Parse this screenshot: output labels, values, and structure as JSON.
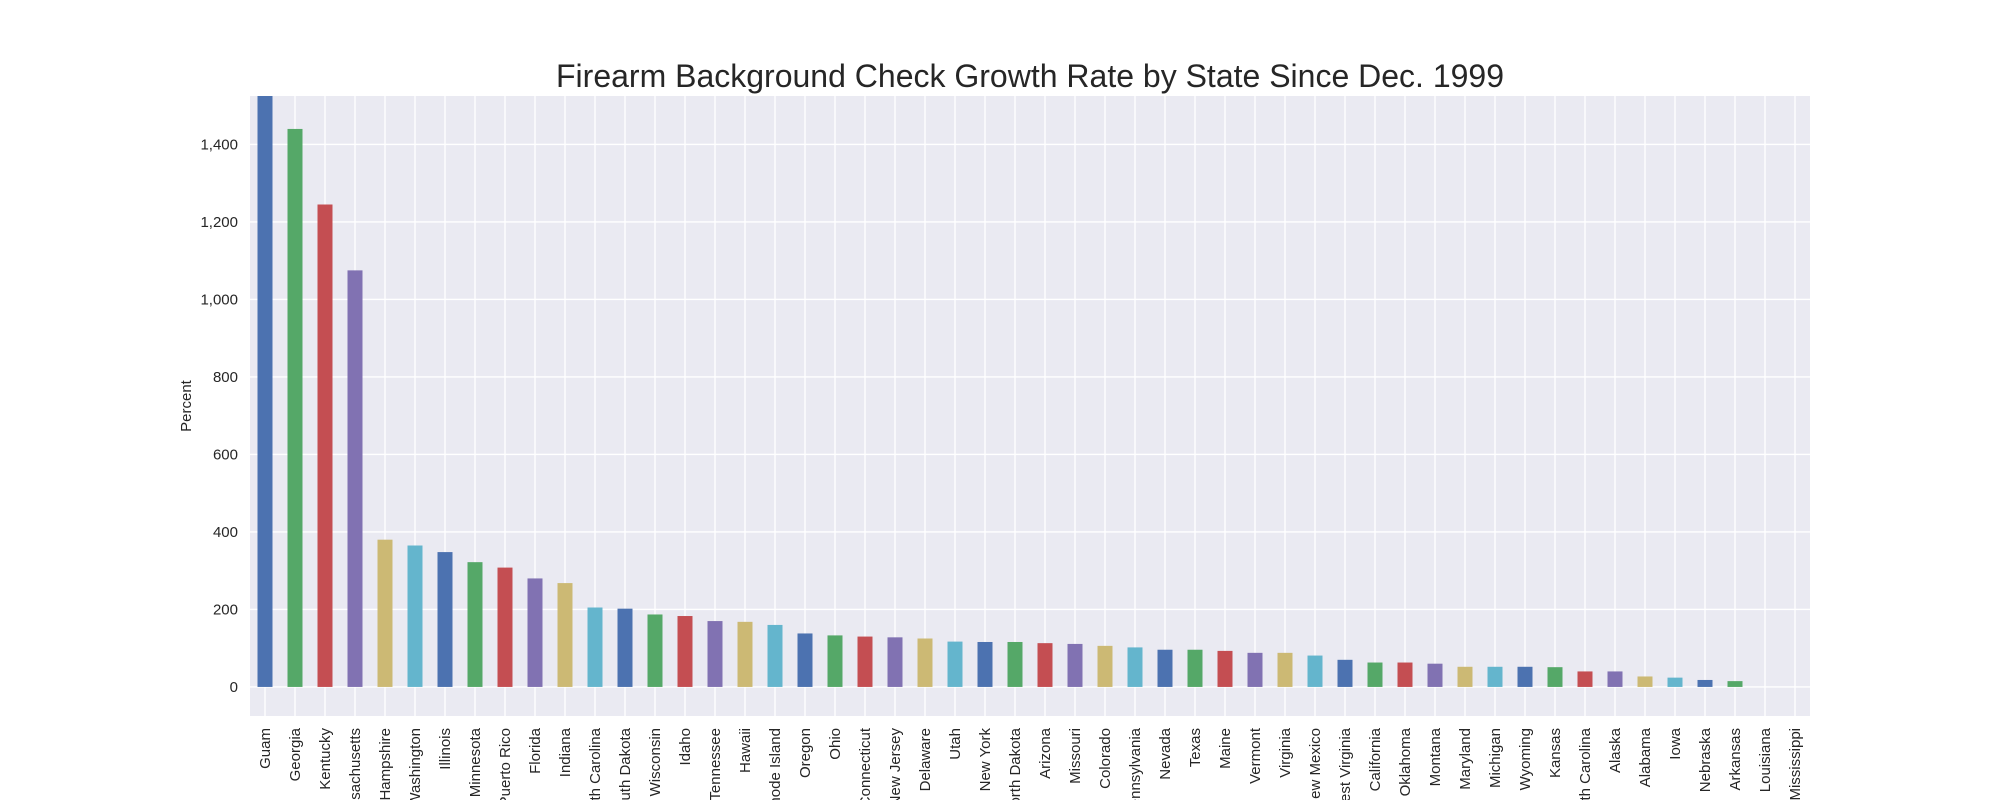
{
  "chart_data": {
    "type": "bar",
    "title": "Firearm Background Check Growth Rate by State Since Dec. 1999",
    "xlabel": "",
    "ylabel": "Percent",
    "ylim": [
      -75,
      1525
    ],
    "yticks": [
      0,
      200,
      400,
      600,
      800,
      1000,
      1200,
      1400
    ],
    "ytick_labels": [
      "0",
      "200",
      "400",
      "600",
      "800",
      "1,000",
      "1,200",
      "1,400"
    ],
    "grid": true,
    "legend": "none",
    "categories": [
      "Guam",
      "Georgia",
      "Kentucky",
      "Massachusetts",
      "New Hampshire",
      "Washington",
      "Illinois",
      "Minnesota",
      "Puerto Rico",
      "Florida",
      "Indiana",
      "North Carolina",
      "South Dakota",
      "Wisconsin",
      "Idaho",
      "Tennessee",
      "Hawaii",
      "Rhode Island",
      "Oregon",
      "Ohio",
      "Connecticut",
      "New Jersey",
      "Delaware",
      "Utah",
      "New York",
      "North Dakota",
      "Arizona",
      "Missouri",
      "Colorado",
      "Pennsylvania",
      "Nevada",
      "Texas",
      "Maine",
      "Vermont",
      "Virginia",
      "New Mexico",
      "West Virginia",
      "California",
      "Oklahoma",
      "Montana",
      "Maryland",
      "Michigan",
      "Wyoming",
      "Kansas",
      "South Carolina",
      "Alaska",
      "Alabama",
      "Iowa",
      "Nebraska",
      "Arkansas",
      "Louisiana",
      "Mississippi"
    ],
    "values": [
      1525,
      1440,
      1245,
      1075,
      380,
      365,
      348,
      322,
      308,
      280,
      268,
      205,
      202,
      187,
      183,
      170,
      168,
      160,
      138,
      133,
      130,
      128,
      125,
      117,
      116,
      116,
      113,
      111,
      106,
      102,
      96,
      96,
      93,
      88,
      88,
      81,
      70,
      63,
      63,
      60,
      52,
      52,
      52,
      51,
      40,
      40,
      27,
      24,
      18,
      15,
      0,
      0
    ],
    "palette": [
      "#4c72b0",
      "#55a868",
      "#c44e52",
      "#8172b2",
      "#ccb974",
      "#64b5cd"
    ],
    "plot_background": "#eaeaf2",
    "grid_color": "#ffffff"
  }
}
